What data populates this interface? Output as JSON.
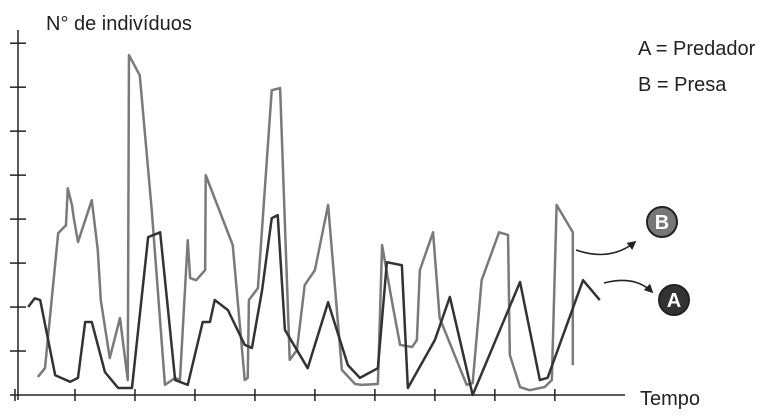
{
  "chart_data": {
    "type": "line",
    "ylabel": "N° de indivíduos",
    "xlabel": "Tempo",
    "xlim": [
      0,
      10.17
    ],
    "ylim": [
      0,
      8.3
    ],
    "xticks": [
      0,
      1,
      2,
      3,
      4,
      5,
      6,
      7,
      8,
      9
    ],
    "yticks": [
      1,
      2,
      3,
      4,
      5,
      6,
      7,
      8
    ],
    "annotations": [
      "B",
      "A"
    ],
    "series": [
      {
        "name": "A = Predador",
        "color": "#333333",
        "x": [
          0.22,
          0.33,
          0.42,
          0.67,
          0.92,
          1.05,
          1.17,
          1.28,
          1.5,
          1.72,
          1.95,
          2.22,
          2.42,
          2.67,
          2.88,
          3.13,
          3.25,
          3.33,
          3.55,
          3.83,
          3.95,
          4.12,
          4.28,
          4.38,
          4.5,
          4.88,
          5.22,
          5.55,
          5.75,
          6.05,
          6.2,
          6.45,
          6.55,
          7.0,
          7.25,
          7.63,
          8.42,
          8.75,
          8.88,
          9.47,
          9.75
        ],
        "values": [
          2.0,
          2.2,
          2.16,
          0.45,
          0.3,
          0.39,
          1.66,
          1.66,
          0.52,
          0.16,
          0.16,
          3.59,
          3.7,
          0.34,
          0.23,
          1.66,
          1.66,
          2.16,
          1.93,
          1.14,
          1.07,
          2.39,
          4.02,
          4.09,
          1.48,
          0.61,
          2.11,
          0.68,
          0.39,
          0.61,
          3.02,
          2.95,
          0.16,
          1.25,
          2.23,
          0.0,
          2.57,
          0.34,
          0.39,
          2.61,
          2.16
        ]
      },
      {
        "name": "B = Presa",
        "color": "#7a7a7a",
        "x": [
          0.38,
          0.5,
          0.72,
          0.85,
          0.88,
          0.95,
          0.98,
          1.05,
          1.28,
          1.38,
          1.43,
          1.58,
          1.75,
          1.88,
          1.9,
          2.08,
          2.28,
          2.5,
          2.67,
          2.75,
          2.88,
          2.92,
          3.02,
          3.17,
          3.18,
          3.63,
          3.83,
          3.88,
          3.9,
          4.05,
          4.28,
          4.42,
          4.58,
          4.7,
          4.83,
          5.0,
          5.22,
          5.45,
          5.67,
          5.78,
          6.05,
          6.12,
          6.28,
          6.42,
          6.62,
          6.7,
          6.75,
          6.97,
          7.08,
          7.53,
          7.63,
          7.78,
          8.07,
          8.22,
          8.25,
          8.42,
          8.58,
          8.83,
          8.95,
          9.03,
          9.3,
          9.3
        ],
        "values": [
          0.41,
          0.61,
          3.68,
          3.86,
          4.7,
          4.32,
          4.02,
          3.48,
          4.43,
          3.3,
          2.16,
          0.84,
          1.75,
          0.34,
          7.73,
          7.27,
          4.2,
          0.23,
          0.39,
          0.34,
          3.52,
          2.66,
          2.61,
          2.84,
          5.0,
          3.41,
          0.34,
          0.39,
          2.16,
          2.43,
          6.93,
          6.98,
          0.8,
          1.02,
          2.5,
          2.84,
          4.32,
          0.57,
          0.25,
          0.23,
          0.25,
          3.41,
          2.16,
          1.14,
          1.09,
          1.25,
          2.84,
          3.7,
          1.75,
          0.23,
          0.27,
          2.61,
          3.7,
          3.64,
          0.91,
          0.18,
          0.11,
          0.18,
          0.34,
          4.32,
          3.7,
          0.68
        ]
      }
    ]
  }
}
